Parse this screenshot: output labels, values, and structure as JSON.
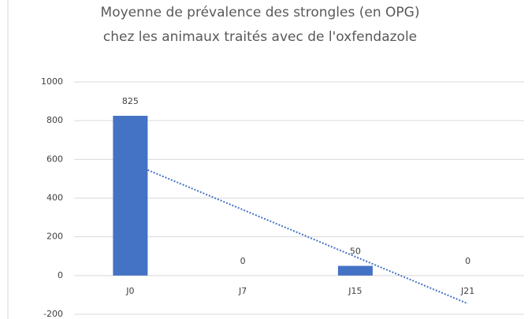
{
  "chart_data": {
    "type": "bar",
    "title": [
      "Moyenne de prévalence des strongles (en OPG)",
      "chez les animaux traités avec de l'oxfendazole"
    ],
    "categories": [
      "J0",
      "J7",
      "J15",
      "J21"
    ],
    "values": [
      825,
      0,
      50,
      0
    ],
    "color": "#4472c4",
    "ylim": [
      -200,
      1000
    ],
    "yticks": [
      -200,
      0,
      200,
      400,
      600,
      800,
      1000
    ],
    "grid": true,
    "trendline": "linear"
  }
}
